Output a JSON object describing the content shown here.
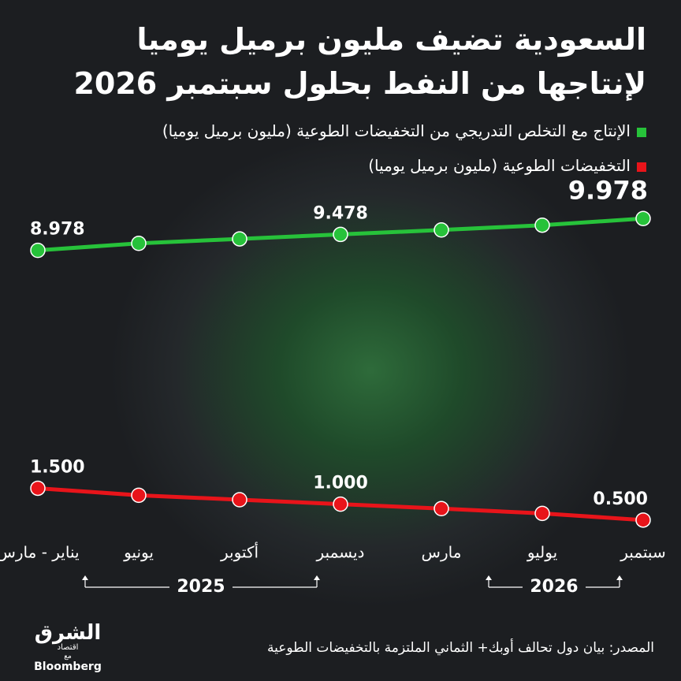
{
  "chart_data": {
    "type": "line",
    "title": [
      "السعودية تضيف مليون برميل يوميا",
      "لإنتاجها من النفط بحلول سبتمبر 2026"
    ],
    "categories": [
      "يناير - مارس",
      "يونيو",
      "أكتوبر",
      "ديسمبر",
      "مارس",
      "يوليو",
      "سبتمبر"
    ],
    "x_groups": [
      "2025",
      "2026"
    ],
    "series": [
      {
        "name": "الإنتاج مع التخلص التدريجي من التخفيضات الطوعية (مليون برميل يوميا)",
        "color": "#27c23a",
        "values": [
          8.978,
          9.198,
          9.338,
          9.478,
          9.618,
          9.768,
          9.978
        ],
        "value_labels": [
          "8.978",
          null,
          null,
          "9.478",
          null,
          null,
          "9.978"
        ]
      },
      {
        "name": "التخفيضات الطوعية (مليون برميل يوميا)",
        "color": "#e8141a",
        "values": [
          1.5,
          1.28,
          1.14,
          1.0,
          0.86,
          0.71,
          0.5
        ],
        "value_labels": [
          "1.500",
          null,
          null,
          "1.000",
          null,
          null,
          "0.500"
        ]
      }
    ],
    "ylim": [
      0,
      11
    ],
    "source": "المصدر: بيان دول تحالف أوبك+ الثماني الملتزمة بالتخفيضات الطوعية",
    "logo": {
      "name": "الشرق",
      "sub": "اقتصاد",
      "with": "مع",
      "partner": "Bloomberg"
    }
  }
}
